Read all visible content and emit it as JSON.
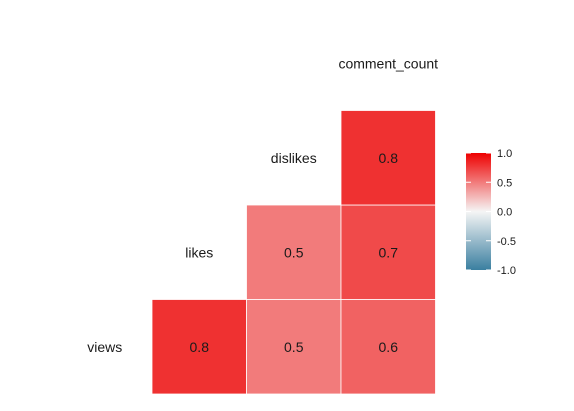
{
  "chart_data": {
    "type": "heatmap",
    "title": "",
    "variables": [
      "views",
      "likes",
      "dislikes",
      "comment_count"
    ],
    "cells": [
      {
        "row": "views",
        "col": "likes",
        "value": 0.8,
        "label": "0.8"
      },
      {
        "row": "views",
        "col": "dislikes",
        "value": 0.5,
        "label": "0.5"
      },
      {
        "row": "views",
        "col": "comment_count",
        "value": 0.6,
        "label": "0.6"
      },
      {
        "row": "likes",
        "col": "dislikes",
        "value": 0.5,
        "label": "0.5"
      },
      {
        "row": "likes",
        "col": "comment_count",
        "value": 0.7,
        "label": "0.7"
      },
      {
        "row": "dislikes",
        "col": "comment_count",
        "value": 0.8,
        "label": "0.8"
      }
    ],
    "color_scale": {
      "range": [
        -1.0,
        1.0
      ],
      "low_color": "#3A7FA0",
      "mid_color": "#F5F5F5",
      "high_color": "#EE0000",
      "ticks": [
        "1.0",
        "0.5",
        "0.0",
        "-0.5",
        "-1.0"
      ],
      "tick_values": [
        1.0,
        0.5,
        0.0,
        -0.5,
        -1.0
      ]
    },
    "legend_position": "right",
    "grid": false
  }
}
